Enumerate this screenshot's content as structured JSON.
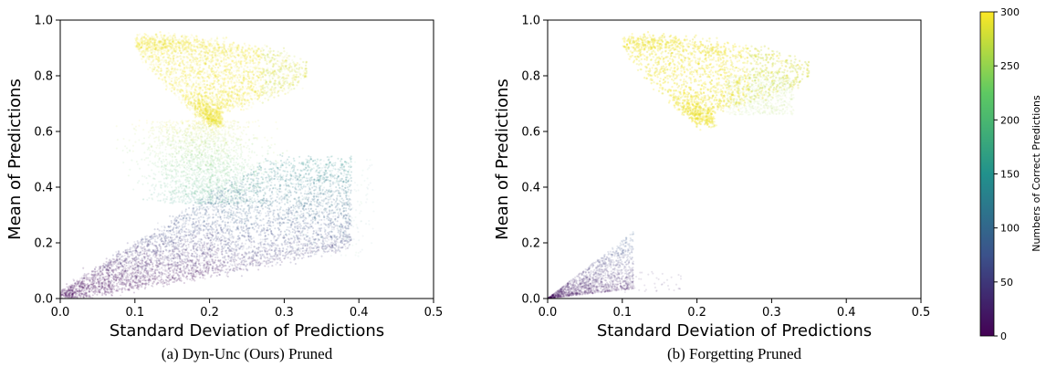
{
  "chart_data": [
    {
      "type": "scatter",
      "xlabel": "Standard Deviation of Predictions",
      "ylabel": "Mean of Predictions",
      "caption": "(a) Dyn-Unc (Ours) Pruned",
      "xlim": [
        0.0,
        0.5
      ],
      "ylim": [
        0.0,
        1.0
      ],
      "xticks": [
        "0.0",
        "0.1",
        "0.2",
        "0.3",
        "0.4",
        "0.5"
      ],
      "yticks": [
        "0.0",
        "0.2",
        "0.4",
        "0.6",
        "0.8",
        "1.0"
      ],
      "clusters": [
        {
          "region": "high-confidence",
          "x_range": [
            0.07,
            0.32
          ],
          "y_range": [
            0.62,
            0.96
          ],
          "count_range": [
            240,
            300
          ]
        },
        {
          "region": "middle",
          "x_range": [
            0.12,
            0.28
          ],
          "y_range": [
            0.35,
            0.62
          ],
          "count_range": [
            150,
            240
          ]
        },
        {
          "region": "lower-band",
          "x_range": [
            0.0,
            0.4
          ],
          "y_range": [
            0.0,
            0.45
          ],
          "count_range": [
            0,
            150
          ]
        }
      ]
    },
    {
      "type": "scatter",
      "xlabel": "Standard Deviation of Predictions",
      "ylabel": "Mean of Predictions",
      "caption": "(b) Forgetting Pruned",
      "xlim": [
        0.0,
        0.5
      ],
      "ylim": [
        0.0,
        1.0
      ],
      "xticks": [
        "0.0",
        "0.1",
        "0.2",
        "0.3",
        "0.4",
        "0.5"
      ],
      "yticks": [
        "0.0",
        "0.2",
        "0.4",
        "0.6",
        "0.8",
        "1.0"
      ],
      "clusters": [
        {
          "region": "high-confidence",
          "x_range": [
            0.07,
            0.34
          ],
          "y_range": [
            0.6,
            0.96
          ],
          "count_range": [
            240,
            300
          ]
        },
        {
          "region": "low-corner",
          "x_range": [
            0.0,
            0.12
          ],
          "y_range": [
            0.0,
            0.24
          ],
          "count_range": [
            0,
            60
          ]
        }
      ]
    }
  ],
  "colorbar": {
    "label": "Numbers of Correct Predictions",
    "ticks": [
      "0",
      "50",
      "100",
      "150",
      "200",
      "250",
      "300"
    ],
    "range": [
      0,
      300
    ],
    "colormap": "viridis",
    "colors": [
      "#440154",
      "#3b528b",
      "#21918c",
      "#5ec962",
      "#fde725"
    ]
  }
}
